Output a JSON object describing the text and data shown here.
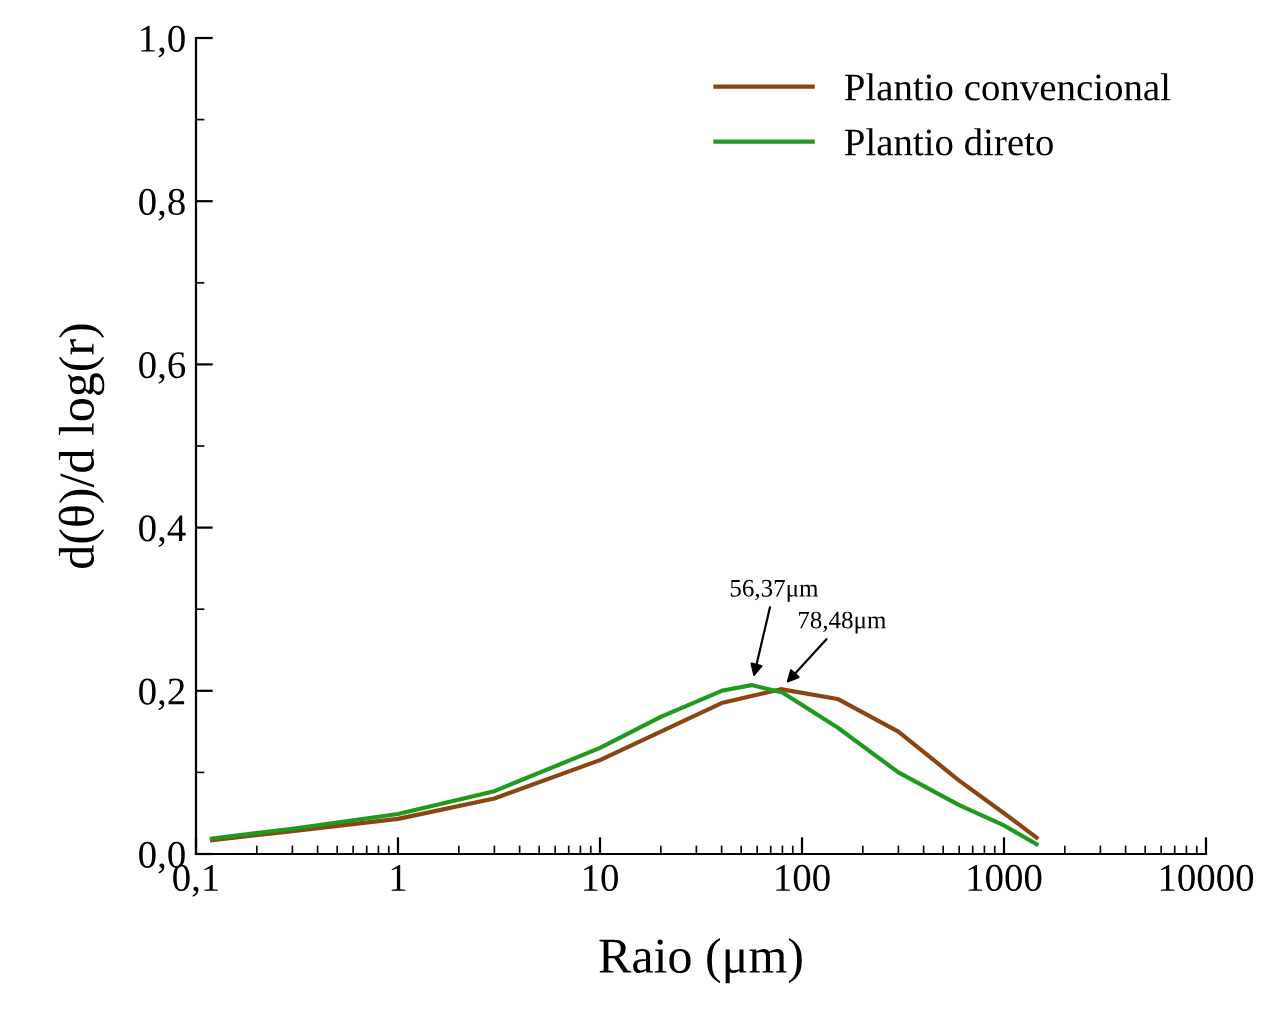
{
  "chart_data": {
    "type": "line",
    "xlabel": "Raio (μm)",
    "ylabel": "d(θ)/d log(r)",
    "log": "x",
    "grid": false,
    "legend": "top right",
    "marker": "none",
    "line_style": "solid",
    "xlim": [
      0.1,
      10000
    ],
    "xticks": [
      {
        "value": 0.1,
        "label": "0,1"
      },
      1,
      10,
      100,
      1000,
      10000
    ],
    "ylim": [
      0,
      1
    ],
    "yticks": [
      {
        "value": 0,
        "label": "0,0"
      },
      {
        "value": 0.2,
        "label": "0,2"
      },
      {
        "value": 0.4,
        "label": "0,4"
      },
      {
        "value": 0.6,
        "label": "0,6"
      },
      {
        "value": 0.8,
        "label": "0,8"
      },
      {
        "value": 1,
        "label": "1,0"
      }
    ],
    "series": [
      {
        "name": "Plantio convencional",
        "color": "#8b4513",
        "x": [
          0.12,
          0.3,
          1,
          3,
          10,
          20,
          40,
          78.48,
          150,
          300,
          600,
          1000,
          1450
        ],
        "values": [
          0.017,
          0.028,
          0.043,
          0.068,
          0.115,
          0.15,
          0.185,
          0.202,
          0.19,
          0.15,
          0.09,
          0.05,
          0.02
        ]
      },
      {
        "name": "Plantio direto",
        "color": "#1f9a1f",
        "x": [
          0.12,
          0.3,
          1,
          3,
          10,
          20,
          40,
          56.37,
          80,
          150,
          300,
          600,
          1000,
          1450
        ],
        "values": [
          0.019,
          0.031,
          0.049,
          0.077,
          0.13,
          0.168,
          0.2,
          0.207,
          0.198,
          0.155,
          0.1,
          0.06,
          0.035,
          0.012
        ]
      }
    ],
    "annotations": [
      {
        "text": "56,37μm",
        "x": 56.37,
        "y": 0.207
      },
      {
        "text": "78,48μm",
        "x": 78.48,
        "y": 0.202
      }
    ]
  }
}
